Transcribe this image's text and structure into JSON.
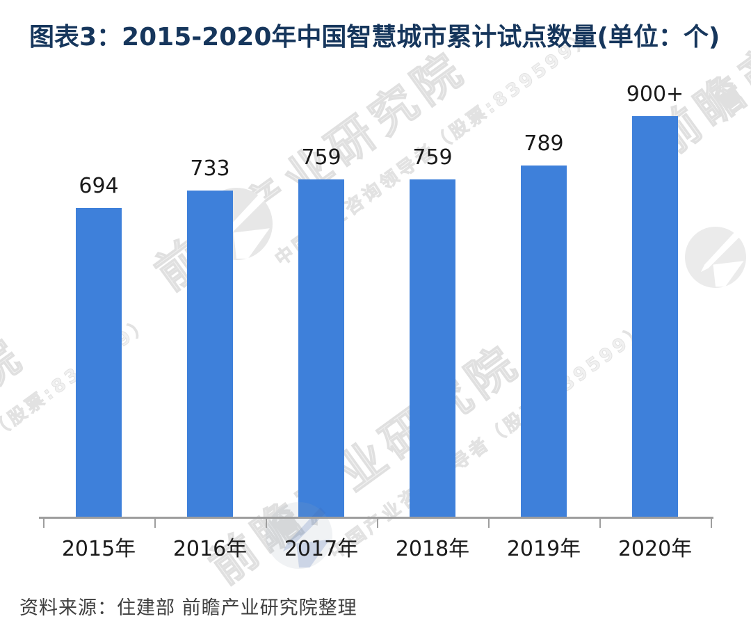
{
  "title": "图表3：2015-2020年中国智慧城市累计试点数量(单位：个)",
  "source_note": "资料来源：住建部 前瞻产业研究院整理",
  "chart_data": {
    "type": "bar",
    "title": "图表3：2015-2020年中国智慧城市累计试点数量(单位：个)",
    "unit": "个",
    "categories": [
      "2015年",
      "2016年",
      "2017年",
      "2018年",
      "2019年",
      "2020年"
    ],
    "values": [
      694,
      733,
      759,
      759,
      789,
      900
    ],
    "value_labels": [
      "694",
      "733",
      "759",
      "759",
      "789",
      "900+"
    ],
    "xlabel": "",
    "ylabel": "",
    "ylim": [
      0,
      960
    ],
    "grid": false,
    "legend": "none",
    "bar_color": "#3E80DA",
    "axis_color": "#9E9E9E",
    "label_color": "#1A1A1A"
  },
  "watermark": {
    "brand_text": "前瞻产业研究院",
    "sub_text": "中国产业咨询领导者（股票:839599）",
    "logo_icon": "qianzhan-logo",
    "text_color": "#E0E0E0",
    "logo_gray": "#E9E9E9",
    "logo_blue": "#E0E8F4"
  },
  "colors": {
    "background": "#FFFFFF",
    "title": "#16365C",
    "source": "#3F3F3F",
    "bar": "#3E80DA"
  }
}
